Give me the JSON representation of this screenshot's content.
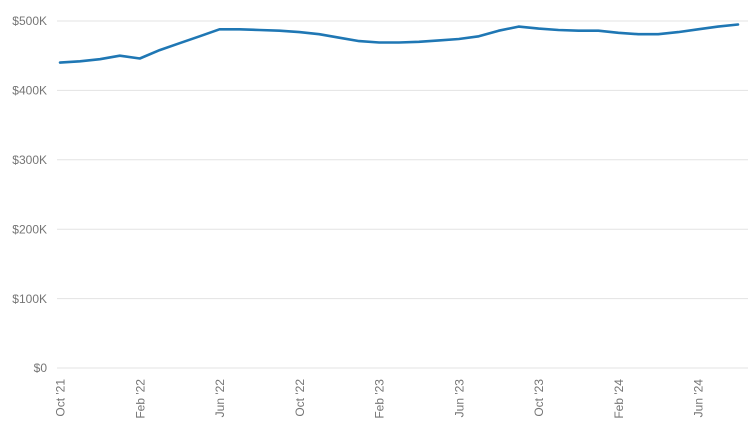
{
  "chart_data": {
    "type": "line",
    "title": "",
    "xlabel": "",
    "ylabel": "",
    "legend": "none",
    "grid": true,
    "x": [
      "Oct '21",
      "Nov '21",
      "Dec '21",
      "Jan '22",
      "Feb '22",
      "Mar '22",
      "Apr '22",
      "May '22",
      "Jun '22",
      "Jul '22",
      "Aug '22",
      "Sep '22",
      "Oct '22",
      "Nov '22",
      "Dec '22",
      "Jan '23",
      "Feb '23",
      "Mar '23",
      "Apr '23",
      "May '23",
      "Jun '23",
      "Jul '23",
      "Aug '23",
      "Sep '23",
      "Oct '23",
      "Nov '23",
      "Dec '23",
      "Jan '24",
      "Feb '24",
      "Mar '24",
      "Apr '24",
      "May '24",
      "Jun '24",
      "Jul '24",
      "Aug '24"
    ],
    "series": [
      {
        "name": "value",
        "color": "#1f77b4",
        "values_usd_k": [
          440,
          442,
          445,
          450,
          446,
          458,
          468,
          478,
          488,
          488,
          487,
          486,
          484,
          481,
          476,
          471,
          469,
          469,
          470,
          472,
          474,
          478,
          486,
          492,
          489,
          487,
          486,
          486,
          483,
          481,
          481,
          484,
          488,
          492,
          495
        ]
      }
    ],
    "ylim_usd_k": [
      0,
      500
    ],
    "y_ticks": [
      {
        "v": 0,
        "label": "$0"
      },
      {
        "v": 100,
        "label": "$100K"
      },
      {
        "v": 200,
        "label": "$200K"
      },
      {
        "v": 300,
        "label": "$300K"
      },
      {
        "v": 400,
        "label": "$400K"
      },
      {
        "v": 500,
        "label": "$500K"
      }
    ],
    "x_ticks": [
      {
        "i": 0,
        "label": "Oct '21"
      },
      {
        "i": 4,
        "label": "Feb '22"
      },
      {
        "i": 8,
        "label": "Jun '22"
      },
      {
        "i": 12,
        "label": "Oct '22"
      },
      {
        "i": 16,
        "label": "Feb '23"
      },
      {
        "i": 20,
        "label": "Jun '23"
      },
      {
        "i": 24,
        "label": "Oct '23"
      },
      {
        "i": 28,
        "label": "Feb '24"
      },
      {
        "i": 32,
        "label": "Jun '24"
      }
    ]
  },
  "colors": {
    "line": "#1f77b4",
    "grid": "#e3e3e3",
    "axis_label": "#757575",
    "background": "#ffffff"
  }
}
